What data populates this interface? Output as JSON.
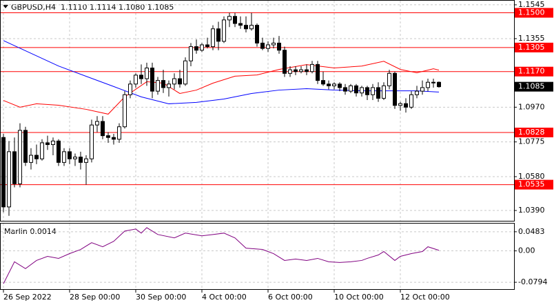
{
  "chart_data": [
    {
      "type": "candlestick",
      "title": "GBPUSD,H4  1.1110 1.1114 1.1080 1.1085",
      "open": [
        1.08,
        1.041,
        1.072,
        1.054,
        1.084,
        1.066,
        1.07,
        1.068,
        1.077,
        1.076,
        1.078,
        1.066,
        1.072,
        1.068,
        1.069,
        1.066,
        1.068,
        1.087,
        1.089,
        1.081,
        1.08,
        1.079,
        1.086,
        1.104,
        1.11,
        1.115,
        1.113,
        1.119,
        1.106,
        1.112,
        1.108,
        1.11,
        1.113,
        1.11,
        1.123,
        1.131,
        1.129,
        1.132,
        1.131,
        1.141,
        1.134,
        1.146,
        1.148,
        1.144,
        1.143,
        1.141,
        1.143,
        1.133,
        1.13,
        1.132,
        1.133,
        1.129,
        1.116,
        1.118,
        1.117,
        1.118,
        1.117,
        1.121,
        1.112,
        1.11,
        1.109,
        1.11,
        1.108,
        1.106,
        1.109,
        1.105,
        1.108,
        1.104,
        1.108,
        1.102,
        1.109,
        1.116,
        1.098,
        1.099,
        1.097,
        1.104,
        1.106,
        1.108,
        1.111,
        1.111
      ],
      "high": [
        1.082,
        1.078,
        1.08,
        1.088,
        1.086,
        1.074,
        1.076,
        1.079,
        1.081,
        1.08,
        1.079,
        1.074,
        1.074,
        1.071,
        1.072,
        1.07,
        1.09,
        1.092,
        1.092,
        1.083,
        1.082,
        1.088,
        1.106,
        1.112,
        1.116,
        1.121,
        1.122,
        1.122,
        1.114,
        1.118,
        1.112,
        1.116,
        1.118,
        1.125,
        1.133,
        1.135,
        1.133,
        1.136,
        1.143,
        1.145,
        1.148,
        1.15,
        1.15,
        1.148,
        1.148,
        1.15,
        1.144,
        1.136,
        1.134,
        1.136,
        1.137,
        1.131,
        1.12,
        1.12,
        1.12,
        1.121,
        1.123,
        1.123,
        1.117,
        1.112,
        1.111,
        1.111,
        1.11,
        1.11,
        1.11,
        1.109,
        1.109,
        1.11,
        1.111,
        1.111,
        1.118,
        1.117,
        1.1,
        1.102,
        1.106,
        1.109,
        1.112,
        1.113,
        1.113,
        1.1114
      ],
      "low": [
        1.038,
        1.036,
        1.052,
        1.052,
        1.064,
        1.062,
        1.065,
        1.067,
        1.073,
        1.07,
        1.064,
        1.064,
        1.065,
        1.064,
        1.062,
        1.0535,
        1.066,
        1.083,
        1.079,
        1.077,
        1.076,
        1.077,
        1.085,
        1.102,
        1.108,
        1.11,
        1.109,
        1.102,
        1.104,
        1.105,
        1.103,
        1.107,
        1.108,
        1.109,
        1.12,
        1.127,
        1.128,
        1.13,
        1.129,
        1.129,
        1.133,
        1.142,
        1.142,
        1.141,
        1.139,
        1.14,
        1.131,
        1.129,
        1.128,
        1.13,
        1.127,
        1.114,
        1.114,
        1.115,
        1.116,
        1.115,
        1.116,
        1.11,
        1.109,
        1.107,
        1.107,
        1.106,
        1.104,
        1.105,
        1.103,
        1.103,
        1.101,
        1.101,
        1.1,
        1.101,
        1.107,
        1.096,
        1.095,
        1.094,
        1.096,
        1.102,
        1.104,
        1.106,
        1.108,
        1.108
      ],
      "close": [
        1.041,
        1.072,
        1.054,
        1.084,
        1.066,
        1.07,
        1.068,
        1.077,
        1.076,
        1.078,
        1.066,
        1.072,
        1.068,
        1.069,
        1.066,
        1.068,
        1.087,
        1.089,
        1.081,
        1.08,
        1.079,
        1.086,
        1.104,
        1.11,
        1.115,
        1.113,
        1.119,
        1.106,
        1.112,
        1.108,
        1.11,
        1.113,
        1.11,
        1.123,
        1.131,
        1.129,
        1.132,
        1.131,
        1.141,
        1.134,
        1.146,
        1.148,
        1.144,
        1.143,
        1.141,
        1.143,
        1.133,
        1.13,
        1.132,
        1.133,
        1.129,
        1.116,
        1.118,
        1.117,
        1.118,
        1.117,
        1.121,
        1.112,
        1.11,
        1.109,
        1.11,
        1.108,
        1.106,
        1.109,
        1.105,
        1.108,
        1.104,
        1.108,
        1.102,
        1.109,
        1.116,
        1.098,
        1.099,
        1.097,
        1.104,
        1.106,
        1.108,
        1.111,
        1.111,
        1.1085
      ],
      "up_color": "#ffffff",
      "down_color": "#000000",
      "lines": [
        {
          "color": "#0000ff",
          "x": [
            0,
            10,
            20,
            25,
            30,
            35,
            40,
            45,
            50,
            55,
            60,
            65,
            70,
            75,
            79
          ],
          "values": [
            1.1344,
            1.1201,
            1.1086,
            1.1028,
            1.0989,
            1.0997,
            1.1016,
            1.1047,
            1.1066,
            1.1074,
            1.1066,
            1.1062,
            1.1062,
            1.1062,
            1.1055
          ]
        },
        {
          "color": "#ff0000",
          "x": [
            0,
            3,
            6,
            10,
            15,
            19,
            22,
            26,
            29,
            32,
            35,
            38,
            42,
            46,
            50,
            55,
            60,
            65,
            69,
            72,
            75,
            78,
            79
          ],
          "values": [
            1.1008,
            1.097,
            1.0989,
            1.0981,
            1.0958,
            1.0931,
            1.1028,
            1.1113,
            1.1105,
            1.1047,
            1.1066,
            1.1105,
            1.1144,
            1.1151,
            1.1182,
            1.1209,
            1.119,
            1.1201,
            1.1228,
            1.1182,
            1.1163,
            1.1186,
            1.1178
          ]
        }
      ],
      "levels": [
        {
          "value": 1.15,
          "label": "1.1500"
        },
        {
          "value": 1.1305,
          "label": "1.1305"
        },
        {
          "value": 1.117,
          "label": "1.1170"
        },
        {
          "value": 1.0828,
          "label": "1.0828"
        },
        {
          "value": 1.0535,
          "label": "1.0535"
        }
      ],
      "level_color": "#ff0000",
      "current": 1.1085,
      "ylim": [
        1.0332,
        1.1568
      ],
      "yticks": [
        1.1545,
        1.1355,
        {
          "value": 1.097,
          "label": "1.0970"
        },
        1.0775,
        {
          "value": 1.058,
          "label": "1.0580"
        },
        {
          "value": 1.039,
          "label": "1.0390"
        }
      ],
      "xticks": [
        {
          "value": 0,
          "label": "26 Sep 2022"
        },
        {
          "value": 12,
          "label": "28 Sep 00:00"
        },
        {
          "value": 24,
          "label": "30 Sep 00:00"
        },
        {
          "value": 36,
          "label": "4 Oct 00:00"
        },
        {
          "value": 48,
          "label": "6 Oct 00:00"
        },
        {
          "value": 60,
          "label": "10 Oct 00:00"
        },
        {
          "value": 72,
          "label": "12 Oct 00:00"
        }
      ],
      "grid": true
    },
    {
      "type": "line",
      "title": "Marlin 0.0014",
      "color": "#800080",
      "x": [
        0,
        2,
        4,
        6,
        8,
        10,
        12,
        14,
        16,
        18,
        20,
        22,
        24,
        25,
        26,
        28,
        31,
        33,
        36,
        38,
        40,
        42,
        44,
        47,
        49,
        51,
        53,
        55,
        57,
        59,
        61,
        63,
        65,
        66,
        68,
        69,
        71,
        72,
        74,
        76,
        77,
        79
      ],
      "values": [
        -0.0829,
        -0.0276,
        -0.0449,
        -0.0242,
        -0.0138,
        -0.019,
        -0.0069,
        0.0035,
        0.0207,
        0.0104,
        0.0242,
        0.0501,
        0.0552,
        0.0449,
        0.0587,
        0.0414,
        0.0328,
        0.0449,
        0.038,
        0.0414,
        0.0449,
        0.0328,
        0.0069,
        0.0035,
        -0.0069,
        -0.0242,
        -0.0207,
        -0.0242,
        -0.019,
        -0.0276,
        -0.0293,
        -0.0276,
        -0.0242,
        -0.019,
        -0.0104,
        -0.0017,
        -0.0242,
        -0.0138,
        -0.0069,
        -0.0017,
        0.0104,
        0.0014
      ],
      "ylim": [
        -0.0967,
        0.069
      ],
      "yticks": [
        0.0483,
        {
          "value": 0,
          "label": "0.00"
        },
        -0.0794
      ],
      "grid": true
    }
  ]
}
